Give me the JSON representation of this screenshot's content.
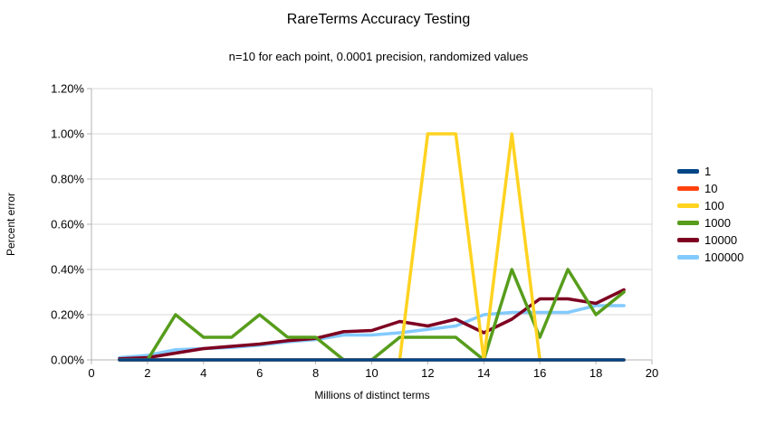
{
  "title": "RareTerms Accuracy Testing",
  "subtitle": "n=10 for each point, 0.0001 precision, randomized values",
  "y_axis": {
    "title": "Percent error",
    "ticks": [
      "0.00%",
      "0.20%",
      "0.40%",
      "0.60%",
      "0.80%",
      "1.00%",
      "1.20%"
    ],
    "min": 0,
    "max": 1.2
  },
  "x_axis": {
    "title": "Millions of distinct terms",
    "ticks": [
      "0",
      "2",
      "4",
      "6",
      "8",
      "10",
      "12",
      "14",
      "16",
      "18",
      "20"
    ],
    "min": 0,
    "max": 20
  },
  "colors": {
    "grid": "#d9d9d9",
    "axis": "#b3b3b3",
    "text": "#000000",
    "background": "#ffffff"
  },
  "chart_data": {
    "type": "line",
    "x": [
      1,
      2,
      3,
      4,
      5,
      6,
      7,
      8,
      9,
      10,
      11,
      12,
      13,
      14,
      15,
      16,
      17,
      18,
      19
    ],
    "xlim": [
      0,
      20
    ],
    "ylim": [
      0,
      1.2
    ],
    "grid": "horizontal",
    "legend_position": "right",
    "title": "RareTerms Accuracy Testing",
    "xlabel": "Millions of distinct terms",
    "ylabel": "Percent error",
    "y_unit": "percent",
    "series": [
      {
        "name": "1",
        "color": "#004586",
        "values": [
          0,
          0,
          0,
          0,
          0,
          0,
          0,
          0,
          0,
          0,
          0,
          0,
          0,
          0,
          0,
          0,
          0,
          0,
          0
        ]
      },
      {
        "name": "10",
        "color": "#FF420E",
        "values": [
          0,
          0,
          0,
          0,
          0,
          0,
          0,
          0,
          0,
          0,
          0,
          0,
          0,
          0,
          0,
          0,
          0,
          0,
          0
        ]
      },
      {
        "name": "100",
        "color": "#FFD320",
        "values": [
          0,
          0,
          0,
          0,
          0,
          0,
          0,
          0,
          0,
          0,
          0,
          1.0,
          1.0,
          0,
          1.0,
          0,
          0,
          0,
          0
        ]
      },
      {
        "name": "1000",
        "color": "#579D1C",
        "values": [
          0,
          0,
          0.2,
          0.1,
          0.1,
          0.2,
          0.1,
          0.1,
          0,
          0,
          0.1,
          0.1,
          0.1,
          0,
          0.4,
          0.1,
          0.4,
          0.2,
          0.3
        ]
      },
      {
        "name": "10000",
        "color": "#7E0021",
        "values": [
          0.005,
          0.01,
          0.03,
          0.05,
          0.06,
          0.07,
          0.085,
          0.095,
          0.125,
          0.13,
          0.17,
          0.15,
          0.18,
          0.12,
          0.18,
          0.27,
          0.27,
          0.25,
          0.31
        ]
      },
      {
        "name": "100000",
        "color": "#83CAFF",
        "values": [
          0.01,
          0.02,
          0.045,
          0.05,
          0.055,
          0.065,
          0.08,
          0.09,
          0.11,
          0.11,
          0.12,
          0.135,
          0.15,
          0.2,
          0.21,
          0.21,
          0.21,
          0.24,
          0.24
        ]
      }
    ]
  }
}
